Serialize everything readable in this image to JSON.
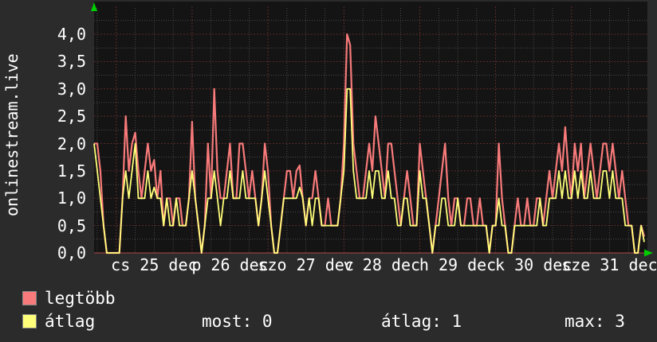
{
  "vertical_label": "onlinestream.live",
  "colors": {
    "background": "#2b2b2b",
    "plot_bg": "#141414",
    "text": "#ffffff",
    "grid_major": "#b84a4a",
    "grid_minor": "#6a6a6a",
    "series_max": "#f87a7a",
    "series_avg": "#ffff7a",
    "arrow": "#00cc00"
  },
  "chart_data": {
    "type": "line",
    "title": "onlinestream.live",
    "xlabel": "",
    "ylabel": "onlinestream.live",
    "ylim": [
      0,
      4.5
    ],
    "x_total_hours": 175,
    "grid": true,
    "legend_position": "bottom-left",
    "yticks": [
      {
        "v": 4,
        "label": "4,0"
      },
      {
        "v": 3.5,
        "label": "3,5"
      },
      {
        "v": 3,
        "label": "3,0"
      },
      {
        "v": 2.5,
        "label": "2,5"
      },
      {
        "v": 2,
        "label": "2,0"
      },
      {
        "v": 1.5,
        "label": "1,5"
      },
      {
        "v": 1,
        "label": "1,0"
      },
      {
        "v": 0.5,
        "label": "0,5"
      },
      {
        "v": 0,
        "label": "0,0"
      }
    ],
    "xticks": [
      {
        "t": 7,
        "label": "cs 25 dec"
      },
      {
        "t": 31,
        "label": "p 26 dec"
      },
      {
        "t": 55,
        "label": "szo 27 dec"
      },
      {
        "t": 79,
        "label": "v 28 dec"
      },
      {
        "t": 103,
        "label": "h 29 dec"
      },
      {
        "t": 127,
        "label": "k 30 dec"
      },
      {
        "t": 151,
        "label": "sze 31 dec"
      }
    ],
    "series": [
      {
        "name": "legtöbb",
        "color_key": "series_max",
        "values": [
          2,
          2,
          1.5,
          0.5,
          0,
          0,
          0,
          0,
          0,
          1,
          2.5,
          1.5,
          2,
          2.2,
          1.5,
          1,
          1.5,
          2,
          1.5,
          1.7,
          1,
          1.5,
          0.5,
          1,
          1,
          0.5,
          1,
          1,
          0.5,
          0.5,
          1,
          2.4,
          1,
          0.5,
          0,
          0.5,
          2,
          1,
          3,
          1.5,
          1,
          1,
          1.5,
          2,
          1,
          1,
          2,
          2,
          1.5,
          1,
          1.5,
          1,
          0.5,
          1,
          2,
          1.5,
          0.5,
          0,
          0,
          0.5,
          1,
          1.5,
          1.5,
          1,
          1.5,
          1.6,
          1,
          0.5,
          1,
          1,
          1.5,
          1,
          0.5,
          0.5,
          1,
          0.5,
          0.5,
          0.5,
          1,
          2,
          4,
          3.8,
          2,
          1.5,
          1,
          1,
          1.5,
          2,
          1.5,
          2.5,
          2,
          1.5,
          1,
          2,
          2,
          1.5,
          1,
          0.5,
          1,
          1.5,
          1,
          0.5,
          0.5,
          2,
          1.5,
          1,
          0.5,
          0,
          0.5,
          1,
          1.5,
          2,
          1,
          0.5,
          1,
          1,
          0.5,
          0.5,
          1,
          1,
          0.5,
          0.5,
          1,
          0.5,
          0.5,
          0,
          0.5,
          0.5,
          2,
          1,
          0.5,
          0,
          0,
          0.5,
          1,
          0.5,
          0.5,
          1,
          0.5,
          0.5,
          1,
          1,
          0.5,
          1,
          1.5,
          1,
          1.5,
          2,
          1.5,
          2.3,
          1.5,
          1,
          2,
          1.5,
          2,
          1,
          1.5,
          2,
          1.5,
          1,
          1.5,
          2,
          2,
          1.5,
          2,
          1.5,
          1,
          1.5,
          1,
          0.5,
          0.5,
          0,
          0,
          0.5,
          0.3
        ]
      },
      {
        "name": "átlag",
        "color_key": "series_avg",
        "values": [
          2,
          1.5,
          1,
          0.5,
          0,
          0,
          0,
          0,
          0,
          1,
          1.5,
          1,
          1.5,
          2,
          1,
          1,
          1,
          1.5,
          1,
          1.2,
          1,
          1,
          0.5,
          1,
          0.5,
          0.5,
          1,
          0.5,
          0.5,
          0.5,
          1,
          1.5,
          1,
          0.5,
          0,
          0.5,
          1,
          1,
          1.5,
          1,
          0.5,
          1,
          1,
          1.5,
          1,
          1,
          1,
          1.5,
          1,
          1,
          1,
          1,
          0.5,
          1,
          1.5,
          1,
          0.5,
          0,
          0,
          0.5,
          1,
          1,
          1,
          1,
          1,
          1.2,
          1,
          0.5,
          1,
          0.5,
          1,
          1,
          0.5,
          0.5,
          0.5,
          0.5,
          0.5,
          0.5,
          1,
          1.5,
          3,
          3,
          1.5,
          1,
          1,
          1,
          1,
          1.5,
          1,
          1.5,
          1.5,
          1,
          1,
          1.5,
          1,
          1,
          0.5,
          0.5,
          1,
          1,
          0.5,
          0.5,
          0.5,
          1.5,
          1,
          1,
          0.5,
          0,
          0.5,
          0.5,
          1,
          1,
          0.5,
          0.5,
          0.5,
          1,
          0.5,
          0.5,
          0.5,
          0.5,
          0.5,
          0.5,
          0.5,
          0.5,
          0.5,
          0,
          0.5,
          0.5,
          1,
          0.5,
          0.5,
          0,
          0,
          0.5,
          0.5,
          0.5,
          0.5,
          0.5,
          0.5,
          0.5,
          0.5,
          1,
          0.5,
          0.5,
          1,
          1,
          1,
          1.5,
          1,
          1.5,
          1,
          1,
          1.5,
          1,
          1.5,
          1,
          1,
          1.5,
          1,
          1,
          1,
          1.5,
          1.5,
          1,
          1.5,
          1,
          1,
          1,
          0.5,
          0.5,
          0.5,
          0,
          0,
          0.5,
          0.2
        ]
      }
    ]
  },
  "legend": {
    "items": [
      {
        "label": "legtöbb"
      },
      {
        "label": "átlag"
      }
    ]
  },
  "stats": {
    "most": "most: 0",
    "atlag": "átlag: 1",
    "max": "max: 3"
  }
}
